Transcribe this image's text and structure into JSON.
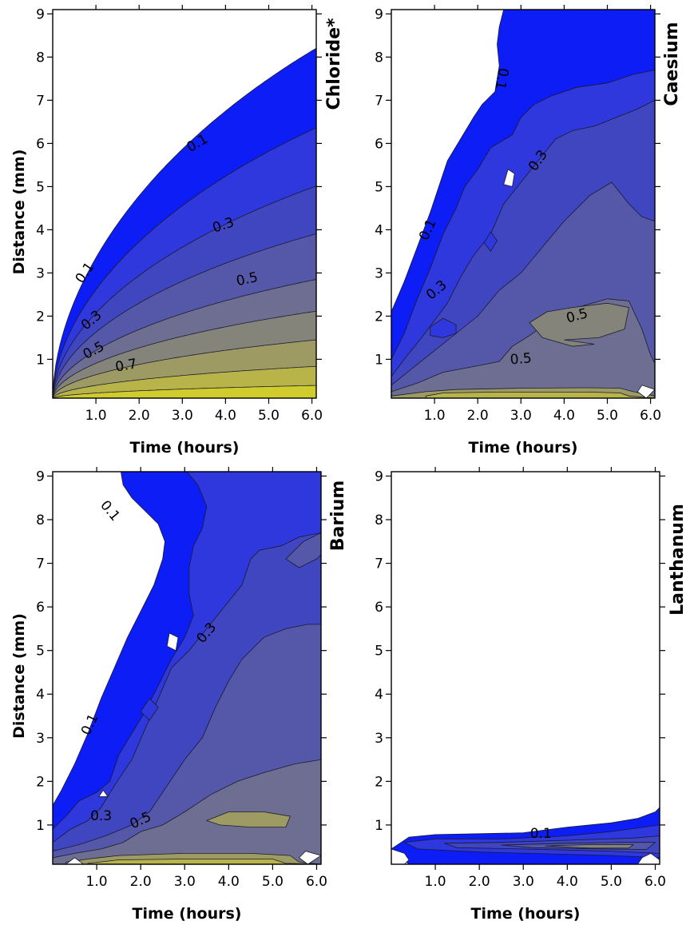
{
  "chart_data": [
    {
      "type": "contour",
      "title": "Chloride*",
      "xlabel": "Time (hours)",
      "ylabel": "Distance (mm)",
      "x_ticks": [
        "1.0",
        "2.0",
        "3.0",
        "4.0",
        "5.0",
        "6.0"
      ],
      "y_ticks": [
        "1",
        "2",
        "3",
        "4",
        "5",
        "6",
        "7",
        "8",
        "9"
      ],
      "xlim": [
        0,
        6.1
      ],
      "ylim": [
        0.1,
        9.1
      ],
      "contour_labels": [
        {
          "text": "0.1",
          "x": 3.35,
          "y": 6.0,
          "angle": -30
        },
        {
          "text": "0.1",
          "x": 0.75,
          "y": 3.0,
          "angle": -55
        },
        {
          "text": "0.3",
          "x": 3.95,
          "y": 4.1,
          "angle": -18
        },
        {
          "text": "0.3",
          "x": 0.9,
          "y": 1.9,
          "angle": -40
        },
        {
          "text": "0.5",
          "x": 4.5,
          "y": 2.85,
          "angle": -12
        },
        {
          "text": "0.5",
          "x": 0.95,
          "y": 1.2,
          "angle": -28
        },
        {
          "text": "0.7",
          "x": 1.7,
          "y": 0.85,
          "angle": -10
        }
      ]
    },
    {
      "type": "contour",
      "title": "Caesium",
      "xlabel": "Time (hours)",
      "ylabel": "",
      "x_ticks": [
        "1.0",
        "2.0",
        "3.0",
        "4.0",
        "5.0",
        "6.0"
      ],
      "y_ticks": [
        "1",
        "2",
        "3",
        "4",
        "5",
        "6",
        "7",
        "8",
        "9"
      ],
      "xlim": [
        0,
        6.1
      ],
      "ylim": [
        0.1,
        9.1
      ],
      "contour_labels": [
        {
          "text": "0.1",
          "x": 2.55,
          "y": 7.5,
          "angle": 100
        },
        {
          "text": "0.1",
          "x": 0.85,
          "y": 4.0,
          "angle": -65
        },
        {
          "text": "0.3",
          "x": 3.4,
          "y": 5.6,
          "angle": -55
        },
        {
          "text": "0.3",
          "x": 1.05,
          "y": 2.6,
          "angle": -40
        },
        {
          "text": "0.5",
          "x": 4.3,
          "y": 2.0,
          "angle": -15
        },
        {
          "text": "0.5",
          "x": 3.0,
          "y": 1.0,
          "angle": -5
        }
      ]
    },
    {
      "type": "contour",
      "title": "Barium",
      "xlabel": "Time (hours)",
      "ylabel": "Distance (mm)",
      "x_ticks": [
        "1.0",
        "2.0",
        "3.0",
        "4.0",
        "5.0",
        "6.0"
      ],
      "y_ticks": [
        "1",
        "2",
        "3",
        "4",
        "5",
        "6",
        "7",
        "8",
        "9"
      ],
      "xlim": [
        0,
        6.1
      ],
      "ylim": [
        0.1,
        9.1
      ],
      "contour_labels": [
        {
          "text": "0.1",
          "x": 1.3,
          "y": 8.2,
          "angle": 50
        },
        {
          "text": "0.1",
          "x": 0.85,
          "y": 3.3,
          "angle": -65
        },
        {
          "text": "0.3",
          "x": 3.5,
          "y": 5.4,
          "angle": -50
        },
        {
          "text": "0.3",
          "x": 1.1,
          "y": 1.2,
          "angle": 0
        },
        {
          "text": "0.5",
          "x": 2.0,
          "y": 1.1,
          "angle": -25
        }
      ]
    },
    {
      "type": "contour",
      "title": "Lanthanum",
      "xlabel": "Time (hours)",
      "ylabel": "",
      "x_ticks": [
        "1.0",
        "2.0",
        "3.0",
        "4.0",
        "5.0",
        "6.0"
      ],
      "y_ticks": [
        "1",
        "2",
        "3",
        "4",
        "5",
        "6",
        "7",
        "8",
        "9"
      ],
      "xlim": [
        0,
        6.1
      ],
      "ylim": [
        0.1,
        9.1
      ],
      "contour_labels": [
        {
          "text": "0.1",
          "x": 3.4,
          "y": 0.8,
          "angle": 0
        }
      ]
    }
  ],
  "colors": {
    "band_1": "#0d1df5",
    "band_2": "#2e38dc",
    "band_3": "#4045c0",
    "band_4": "#5558a8",
    "band_5": "#6d6e91",
    "band_6": "#85847a",
    "band_7": "#9d9b63",
    "band_8": "#b8b44a",
    "band_9": "#d0cc2e",
    "band_10": "#e6e115",
    "contour_line": "#1a1a2e",
    "background": "#ffffff"
  }
}
